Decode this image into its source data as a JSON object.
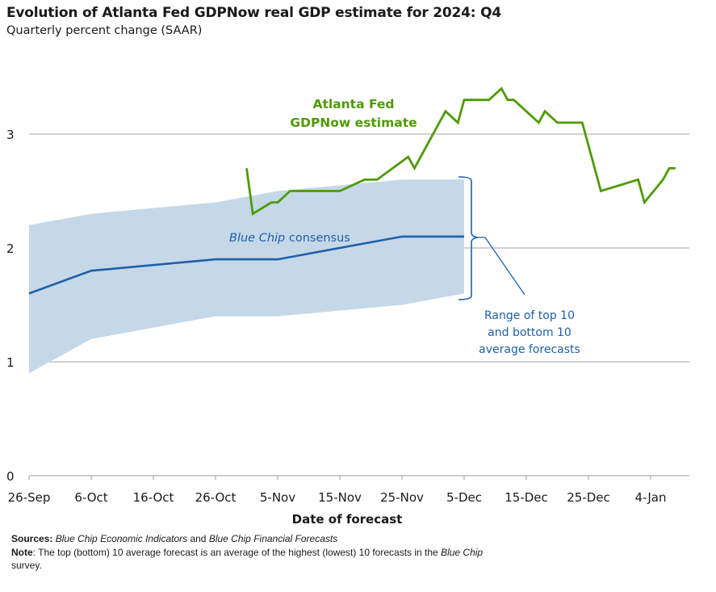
{
  "chart_data": {
    "type": "line",
    "title": "Evolution of Atlanta Fed GDPNow real GDP estimate for 2024: Q4",
    "subtitle": "Quarterly percent change (SAAR)",
    "xlabel": "Date of forecast",
    "ylabel": "",
    "ylim": [
      0,
      3.5
    ],
    "yticks": [
      0,
      1,
      2,
      3
    ],
    "x_units": "days since 26-Sep-2024",
    "xlim": [
      0,
      106
    ],
    "xticks": [
      {
        "day": 0,
        "label": "26-Sep"
      },
      {
        "day": 10,
        "label": "6-Oct"
      },
      {
        "day": 20,
        "label": "16-Oct"
      },
      {
        "day": 30,
        "label": "26-Oct"
      },
      {
        "day": 40,
        "label": "5-Nov"
      },
      {
        "day": 50,
        "label": "15-Nov"
      },
      {
        "day": 60,
        "label": "25-Nov"
      },
      {
        "day": 70,
        "label": "5-Dec"
      },
      {
        "day": 80,
        "label": "15-Dec"
      },
      {
        "day": 90,
        "label": "25-Dec"
      },
      {
        "day": 100,
        "label": "4-Jan"
      }
    ],
    "grid": true,
    "series": [
      {
        "name": "Atlanta Fed GDPNow estimate",
        "color": "#4e9a06",
        "x": [
          35,
          36,
          39,
          40,
          42,
          50,
          54,
          56,
          61,
          62,
          67,
          69,
          70,
          74,
          76,
          77,
          78,
          82,
          83,
          85,
          89,
          92,
          98,
          99,
          102,
          103,
          104
        ],
        "y": [
          2.7,
          2.3,
          2.4,
          2.4,
          2.5,
          2.5,
          2.6,
          2.6,
          2.8,
          2.7,
          3.2,
          3.1,
          3.3,
          3.3,
          3.4,
          3.3,
          3.3,
          3.1,
          3.2,
          3.1,
          3.1,
          2.5,
          2.6,
          2.4,
          2.6,
          2.7,
          2.7
        ]
      },
      {
        "name": "Blue Chip consensus",
        "color": "#1f5fa8",
        "x": [
          0,
          10,
          30,
          40,
          60,
          70
        ],
        "y": [
          1.6,
          1.8,
          1.9,
          1.9,
          2.1,
          2.1
        ]
      }
    ],
    "band": {
      "name": "Range of top 10 and bottom 10 average forecasts",
      "color": "#c5d8e8",
      "x": [
        0,
        10,
        30,
        40,
        60,
        70
      ],
      "upper": [
        2.2,
        2.3,
        2.4,
        2.5,
        2.6,
        2.6
      ],
      "lower": [
        0.9,
        1.2,
        1.4,
        1.4,
        1.5,
        1.6
      ]
    },
    "annotations": {
      "gdpnow_line1": "Atlanta Fed",
      "gdpnow_line2": "GDPNow estimate",
      "bluechip_italic": "Blue Chip",
      "bluechip_rest": " consensus",
      "range_line1": "Range of top 10",
      "range_line2": "and bottom 10",
      "range_line3": "average forecasts"
    }
  },
  "footer": {
    "sources_label": "Sources:",
    "sources_italic1": "Blue Chip Economic Indicators",
    "sources_and": " and ",
    "sources_italic2": "Blue Chip Financial Forecasts",
    "note_label": "Note",
    "note_text": ": The top (bottom) 10 average forecast is an average of the highest (lowest) 10 forecasts in the ",
    "note_italic": "Blue Chip",
    "note_end": " survey."
  }
}
